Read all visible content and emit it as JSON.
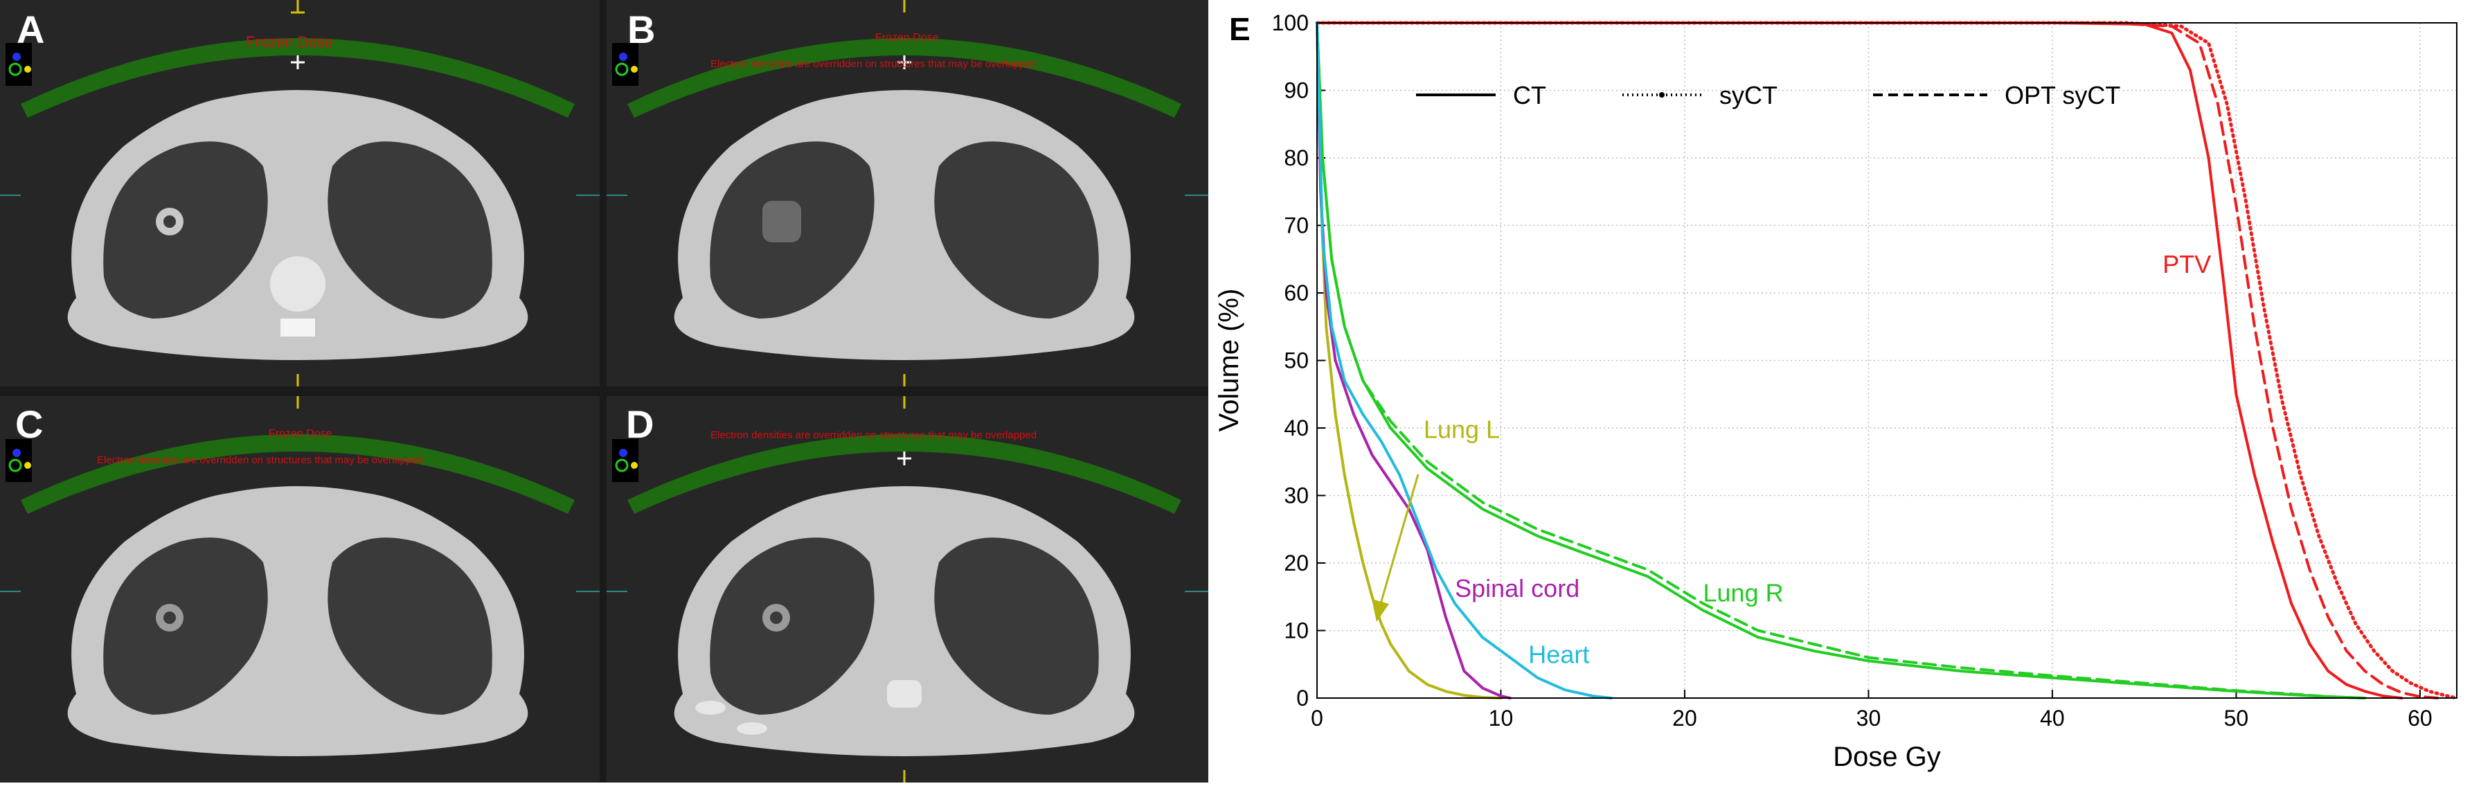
{
  "panels": [
    {
      "letter": "A",
      "overlay1": "Frozen Dose",
      "overlay2": ""
    },
    {
      "letter": "B",
      "overlay1": "Frozen Dose",
      "overlay2": "Electron densities are overridden on structures that may be overlapped"
    },
    {
      "letter": "C",
      "overlay1": "Frozen Dose",
      "overlay2": "Electron densities are overridden on structures that may be overlapped"
    },
    {
      "letter": "D",
      "overlay1": "",
      "overlay2": "Electron densities are overridden on structures that may be overlapped"
    }
  ],
  "colors": {
    "ct_body": "#c8c8c8",
    "ct_lung": "#3a3a3a",
    "dose_band": "#1e6b12",
    "overlay_text": "#d01010",
    "ct_bg": "#262626"
  },
  "chart_data": {
    "type": "line",
    "panel_label": "E",
    "title": "",
    "xlabel": "Dose Gy",
    "ylabel": "Volume (%)",
    "xlim": [
      0,
      62
    ],
    "ylim": [
      0,
      100
    ],
    "xticks": [
      0,
      10,
      20,
      30,
      40,
      50,
      60
    ],
    "yticks": [
      0,
      10,
      20,
      30,
      40,
      50,
      60,
      70,
      80,
      90,
      100
    ],
    "grid": true,
    "legend": [
      {
        "label": "CT",
        "style": "solid"
      },
      {
        "label": "syCT",
        "style": "dotted"
      },
      {
        "label": "OPT syCT",
        "style": "dashed"
      }
    ],
    "series": [
      {
        "name": "PTV",
        "structure": "PTV",
        "style": "solid",
        "color": "#ee1c1c",
        "x": [
          0,
          40,
          45,
          46.5,
          47.5,
          48.5,
          49.3,
          50,
          51,
          52,
          53,
          54,
          55,
          56,
          57,
          58,
          59
        ],
        "y": [
          100,
          100,
          99.8,
          98.5,
          93,
          80,
          62,
          45,
          33,
          23,
          14,
          8,
          4,
          2,
          1,
          0.3,
          0
        ]
      },
      {
        "name": "PTV",
        "structure": "PTV",
        "style": "dashed",
        "color": "#ee1c1c",
        "x": [
          0,
          43,
          46.5,
          48,
          49,
          50,
          51,
          52,
          53,
          54,
          55,
          56,
          57,
          58,
          59,
          60,
          61
        ],
        "y": [
          100,
          100,
          99.5,
          97,
          88,
          73,
          55,
          40,
          28,
          19,
          12,
          7,
          4,
          2,
          0.8,
          0.2,
          0
        ]
      },
      {
        "name": "PTV",
        "structure": "PTV",
        "style": "dotted",
        "color": "#ee1c1c",
        "x": [
          0,
          44,
          47,
          48.5,
          49.5,
          50.5,
          51.5,
          52.5,
          53.5,
          54.5,
          55.5,
          56.5,
          57.5,
          58.5,
          59.5,
          60.5,
          61.5,
          62
        ],
        "y": [
          100,
          100,
          99.5,
          97,
          88,
          74,
          58,
          44,
          33,
          24,
          17,
          11,
          7,
          4,
          2.2,
          1,
          0.3,
          0
        ]
      },
      {
        "name": "Lung R",
        "structure": "Lung R",
        "style": "solid",
        "color": "#22cc22",
        "x": [
          0,
          0.3,
          0.8,
          1.5,
          2.5,
          4,
          6,
          9,
          12,
          15,
          18,
          21,
          24,
          27,
          30,
          35,
          40,
          45,
          50,
          53,
          55,
          57
        ],
        "y": [
          100,
          80,
          65,
          55,
          47,
          40,
          34,
          28,
          24,
          21,
          18,
          13,
          9,
          7,
          5.5,
          4,
          3,
          2,
          1,
          0.5,
          0.2,
          0
        ]
      },
      {
        "name": "Lung R",
        "structure": "Lung R",
        "style": "dashed",
        "color": "#22cc22",
        "x": [
          0,
          0.3,
          0.8,
          1.5,
          2.5,
          4,
          6,
          9,
          12,
          15,
          18,
          21,
          24,
          27,
          30,
          35,
          40,
          45,
          50,
          53,
          55,
          57
        ],
        "y": [
          100,
          80,
          65,
          55,
          47,
          41,
          35,
          29,
          25,
          22,
          19,
          14,
          10,
          8,
          6,
          4.5,
          3.3,
          2.2,
          1.1,
          0.6,
          0.2,
          0
        ]
      },
      {
        "name": "Lung L",
        "structure": "Lung L",
        "style": "solid",
        "color": "#b5b514",
        "x": [
          0,
          0.2,
          0.5,
          1,
          1.5,
          2,
          2.5,
          3,
          3.5,
          4,
          5,
          6,
          7,
          8,
          9,
          10
        ],
        "y": [
          100,
          75,
          55,
          42,
          33,
          26,
          20,
          15,
          11,
          8,
          4,
          2,
          1,
          0.4,
          0.1,
          0
        ]
      },
      {
        "name": "Spinal cord",
        "structure": "Spinal cord",
        "style": "solid",
        "color": "#aa22aa",
        "x": [
          0,
          0.2,
          0.5,
          1,
          2,
          3,
          4,
          5,
          6,
          6.5,
          7,
          7.5,
          8,
          9,
          10,
          10.5
        ],
        "y": [
          100,
          75,
          60,
          50,
          42,
          36,
          32,
          28,
          22,
          17,
          12,
          8,
          4,
          1.5,
          0.3,
          0
        ]
      },
      {
        "name": "Heart",
        "structure": "Heart",
        "style": "solid",
        "color": "#22bbdd",
        "x": [
          0,
          0.3,
          0.8,
          1.5,
          2.5,
          3.5,
          4.5,
          5.5,
          6.5,
          7.5,
          9,
          10.5,
          12,
          13.5,
          15,
          16
        ],
        "y": [
          100,
          68,
          55,
          47,
          42,
          38,
          33,
          26,
          19,
          14,
          9,
          6,
          3,
          1.2,
          0.3,
          0
        ]
      }
    ],
    "annotations": [
      {
        "text": "PTV",
        "x": 46,
        "y": 63,
        "color": "#ee1c1c"
      },
      {
        "text": "Lung L",
        "x": 5.8,
        "y": 38.5,
        "color": "#b5b514"
      },
      {
        "text": "Spinal cord",
        "x": 7.5,
        "y": 15,
        "color": "#aa22aa"
      },
      {
        "text": "Heart",
        "x": 11.5,
        "y": 5.2,
        "color": "#22bbdd"
      },
      {
        "text": "Lung R",
        "x": 21,
        "y": 14.3,
        "color": "#22cc22"
      }
    ]
  }
}
